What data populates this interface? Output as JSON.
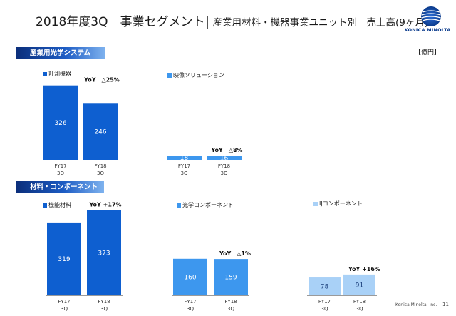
{
  "title": {
    "main": "2018年度3Q　事業セグメント",
    "sub": "産業用材料・機器事業ユニット別　売上高(9ヶ月)"
  },
  "logo": {
    "text": "KONICA MINOLTA"
  },
  "unit": "【億円】",
  "sections": [
    {
      "label": "産業用光学システム"
    },
    {
      "label": "材料・コンポーネント"
    }
  ],
  "footer": {
    "company": "Konica Minolta, Inc.",
    "page": "11"
  },
  "colors": {
    "dark_blue": "#0e5fd0",
    "mid_blue": "#3d97ee",
    "light_blue": "#a9d1f7"
  },
  "chart_data": [
    {
      "type": "bar",
      "legend": "計測機器",
      "categories": [
        "FY17\n3Q",
        "FY18\n3Q"
      ],
      "values": [
        326,
        246
      ],
      "yoy": "YoY　△25%",
      "color": "#0e5fd0"
    },
    {
      "type": "bar",
      "legend": "映像ソリューション",
      "categories": [
        "FY17\n3Q",
        "FY18\n3Q"
      ],
      "values": [
        18,
        16
      ],
      "yoy": "YoY　△8%",
      "color": "#3d97ee"
    },
    {
      "type": "bar",
      "legend": "機能材料",
      "categories": [
        "FY17\n3Q",
        "FY18\n3Q"
      ],
      "values": [
        319,
        373
      ],
      "yoy": "YoY +17%",
      "color": "#0e5fd0"
    },
    {
      "type": "bar",
      "legend": "光学コンポーネント",
      "categories": [
        "FY17\n3Q",
        "FY18\n3Q"
      ],
      "values": [
        160,
        159
      ],
      "yoy": "YoY　△1%",
      "color": "#3d97ee"
    },
    {
      "type": "bar",
      "legend": "IJコンポーネント",
      "categories": [
        "FY17\n3Q",
        "FY18\n3Q"
      ],
      "values": [
        78,
        91
      ],
      "yoy": "YoY +16%",
      "color": "#a9d1f7"
    }
  ]
}
